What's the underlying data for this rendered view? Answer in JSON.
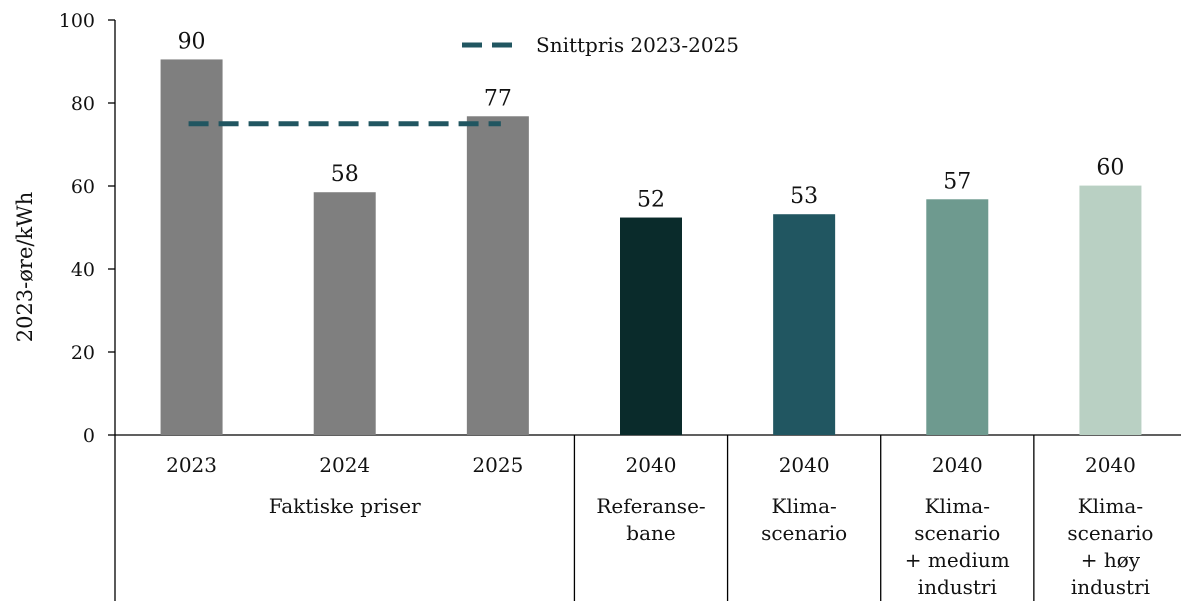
{
  "chart_data": {
    "type": "bar",
    "ylabel": "2023-øre/kWh",
    "ylim": [
      0,
      100
    ],
    "yticks": [
      0,
      20,
      40,
      60,
      80,
      100
    ],
    "grid": false,
    "legend": {
      "position": "top-center",
      "entries": [
        "Snittpris 2023-2025"
      ]
    },
    "bars": [
      {
        "year": "2023",
        "value": 90.5,
        "label": "90",
        "color": "#7f7f7f"
      },
      {
        "year": "2024",
        "value": 58.5,
        "label": "58",
        "color": "#7f7f7f"
      },
      {
        "year": "2025",
        "value": 76.8,
        "label": "77",
        "color": "#7f7f7f"
      },
      {
        "year": "2040",
        "value": 52.4,
        "label": "52",
        "color": "#0a2b2b"
      },
      {
        "year": "2040",
        "value": 53.2,
        "label": "53",
        "color": "#215661"
      },
      {
        "year": "2040",
        "value": 56.8,
        "label": "57",
        "color": "#6e9a8f"
      },
      {
        "year": "2040",
        "value": 60.1,
        "label": "60",
        "color": "#b9d0c3"
      }
    ],
    "groups": [
      {
        "lines": [
          "Faktiske priser"
        ],
        "span": [
          0,
          2
        ]
      },
      {
        "lines": [
          "Referanse-",
          "bane"
        ],
        "span": [
          3,
          3
        ]
      },
      {
        "lines": [
          "Klima-",
          "scenario"
        ],
        "span": [
          4,
          4
        ]
      },
      {
        "lines": [
          "Klima-",
          "scenario",
          "+ medium",
          "industri"
        ],
        "span": [
          5,
          5
        ]
      },
      {
        "lines": [
          "Klima-",
          "scenario",
          "+ høy",
          "industri"
        ],
        "span": [
          6,
          6
        ]
      }
    ],
    "average_line": {
      "name": "Snittpris 2023-2025",
      "value": 75,
      "from_bar": 0,
      "to_bar": 2,
      "color": "#215661",
      "style": "dashed"
    }
  }
}
